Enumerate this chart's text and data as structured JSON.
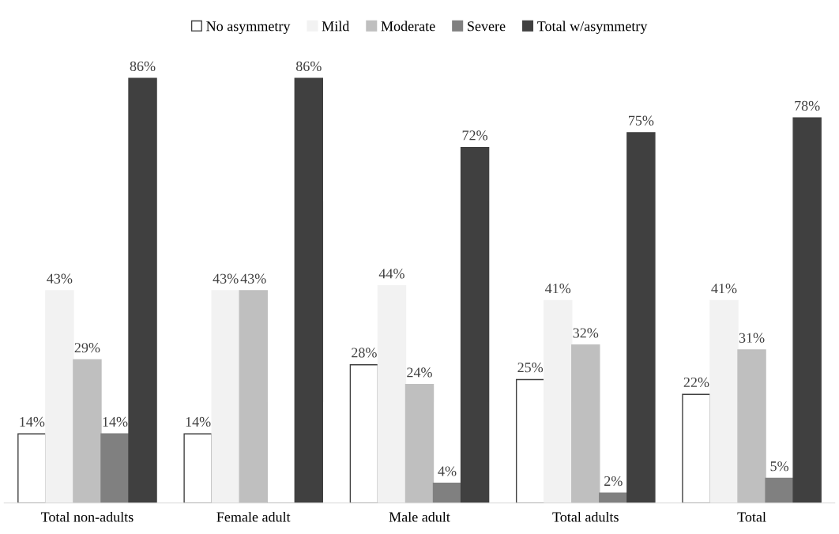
{
  "chart_data": {
    "type": "bar",
    "categories": [
      "Total non-adults",
      "Female adult",
      "Male adult",
      "Total adults",
      "Total"
    ],
    "legend": "top",
    "grid": false,
    "tick_labels": "x",
    "series": [
      {
        "name": "No asymmetry",
        "color": "#ffffff",
        "values": [
          14,
          14,
          28,
          25,
          22
        ],
        "value_labels": [
          "14%",
          "14%",
          "28%",
          "25%",
          "22%"
        ]
      },
      {
        "name": "Mild",
        "color": "#f2f2f2",
        "values": [
          43,
          43,
          44,
          41,
          41
        ],
        "value_labels": [
          "43%",
          "43%",
          "44%",
          "41%",
          "41%"
        ]
      },
      {
        "name": "Moderate",
        "color": "#bfbfbf",
        "values": [
          29,
          43,
          24,
          32,
          31
        ],
        "value_labels": [
          "29%",
          "43%",
          "24%",
          "32%",
          "31%"
        ]
      },
      {
        "name": "Severe",
        "color": "#808080",
        "values": [
          14,
          0,
          4,
          2,
          5
        ],
        "value_labels": [
          "14%",
          null,
          "4%",
          "2%",
          "5%"
        ]
      },
      {
        "name": "Total w/asymmetry",
        "color": "#404040",
        "values": [
          86,
          86,
          72,
          75,
          78
        ],
        "value_labels": [
          "86%",
          "86%",
          "72%",
          "75%",
          "78%"
        ]
      }
    ]
  }
}
